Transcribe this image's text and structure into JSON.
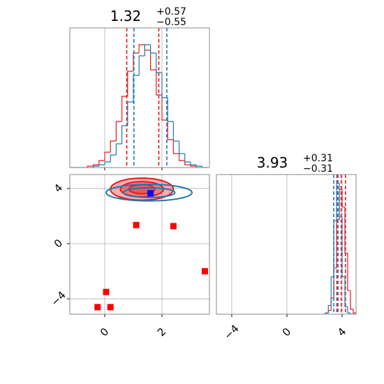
{
  "chart_data": [
    {
      "type": "histogram",
      "title": {
        "value": "1.32",
        "upper": "+0.57",
        "lower": "−0.55"
      },
      "xlim": [
        -1.22,
        3.66
      ],
      "ylim": [
        0,
        100
      ],
      "xticks": [
        0,
        2
      ],
      "grid": true,
      "tick_labels": false,
      "bins": [
        -1.2,
        -1.0,
        -0.8,
        -0.6,
        -0.4,
        -0.2,
        0.0,
        0.2,
        0.4,
        0.6,
        0.8,
        1.0,
        1.2,
        1.4,
        1.6,
        1.8,
        2.0,
        2.2,
        2.4,
        2.6,
        2.8,
        3.0,
        3.2,
        3.4,
        3.6
      ],
      "series": [
        {
          "color": "#e31a1c",
          "values": [
            0,
            0,
            0,
            1,
            2,
            5,
            11,
            19,
            33,
            51,
            69,
            82,
            88,
            84,
            70,
            52,
            34,
            20,
            10,
            5,
            2,
            1,
            0,
            0
          ],
          "quantiles": [
            0.77,
            1.89
          ]
        },
        {
          "color": "#1f77b4",
          "values": [
            0,
            0,
            0,
            0,
            1,
            2,
            4,
            9,
            17,
            30,
            47,
            66,
            80,
            88,
            82,
            68,
            50,
            33,
            19,
            10,
            4,
            2,
            1,
            0
          ],
          "quantiles": [
            1.02,
            2.17
          ]
        }
      ]
    },
    {
      "type": "scatter",
      "xlim": [
        -1.22,
        3.66
      ],
      "ylim": [
        -5.11,
        5.01
      ],
      "xticks": [
        0,
        2
      ],
      "yticks": [
        {
          "value": -4,
          "label": "−4"
        },
        0,
        4
      ],
      "grid": true,
      "tick_labels": true,
      "contours": [
        {
          "color": "#e31a1c",
          "filled": true,
          "center": [
            1.3,
            3.95
          ],
          "radii": [
            [
              1.1,
              0.8
            ],
            [
              0.75,
              0.55
            ],
            [
              0.45,
              0.33
            ]
          ]
        },
        {
          "color": "#1f77b4",
          "filled": false,
          "center": [
            1.55,
            3.7
          ],
          "radii": [
            [
              1.5,
              0.6
            ],
            [
              0.9,
              0.35
            ]
          ]
        }
      ],
      "series": [
        {
          "color": "#ff0000",
          "x": [
            1.1,
            2.4,
            3.5,
            0.05,
            -0.25,
            0.2
          ],
          "values": [
            1.35,
            1.27,
            -2.0,
            -3.5,
            -4.6,
            -4.6
          ]
        },
        {
          "color": "#0000ff",
          "x": [
            1.6
          ],
          "values": [
            3.65
          ]
        }
      ]
    },
    {
      "type": "histogram",
      "title": {
        "value": "3.93",
        "upper": "+0.31",
        "lower": "−0.31"
      },
      "xlim": [
        -5.11,
        5.01
      ],
      "ylim": [
        0,
        112
      ],
      "xticks": [
        {
          "value": -4,
          "label": "−4"
        },
        0,
        4
      ],
      "grid": true,
      "tick_labels": true,
      "bins": [
        2.6,
        2.8,
        3.0,
        3.2,
        3.4,
        3.6,
        3.8,
        4.0,
        4.2,
        4.4,
        4.6,
        4.8,
        5.0
      ],
      "series": [
        {
          "color": "#e31a1c",
          "values": [
            0,
            1,
            3,
            13,
            37,
            76,
            100,
            86,
            49,
            19,
            4,
            1
          ],
          "quantiles": [
            3.62,
            3.93,
            4.24
          ]
        },
        {
          "color": "#1f77b4",
          "values": [
            0,
            1,
            7,
            30,
            75,
            105,
            78,
            30,
            6,
            1,
            0,
            0
          ],
          "quantiles": [
            3.39,
            3.7
          ]
        }
      ]
    }
  ]
}
